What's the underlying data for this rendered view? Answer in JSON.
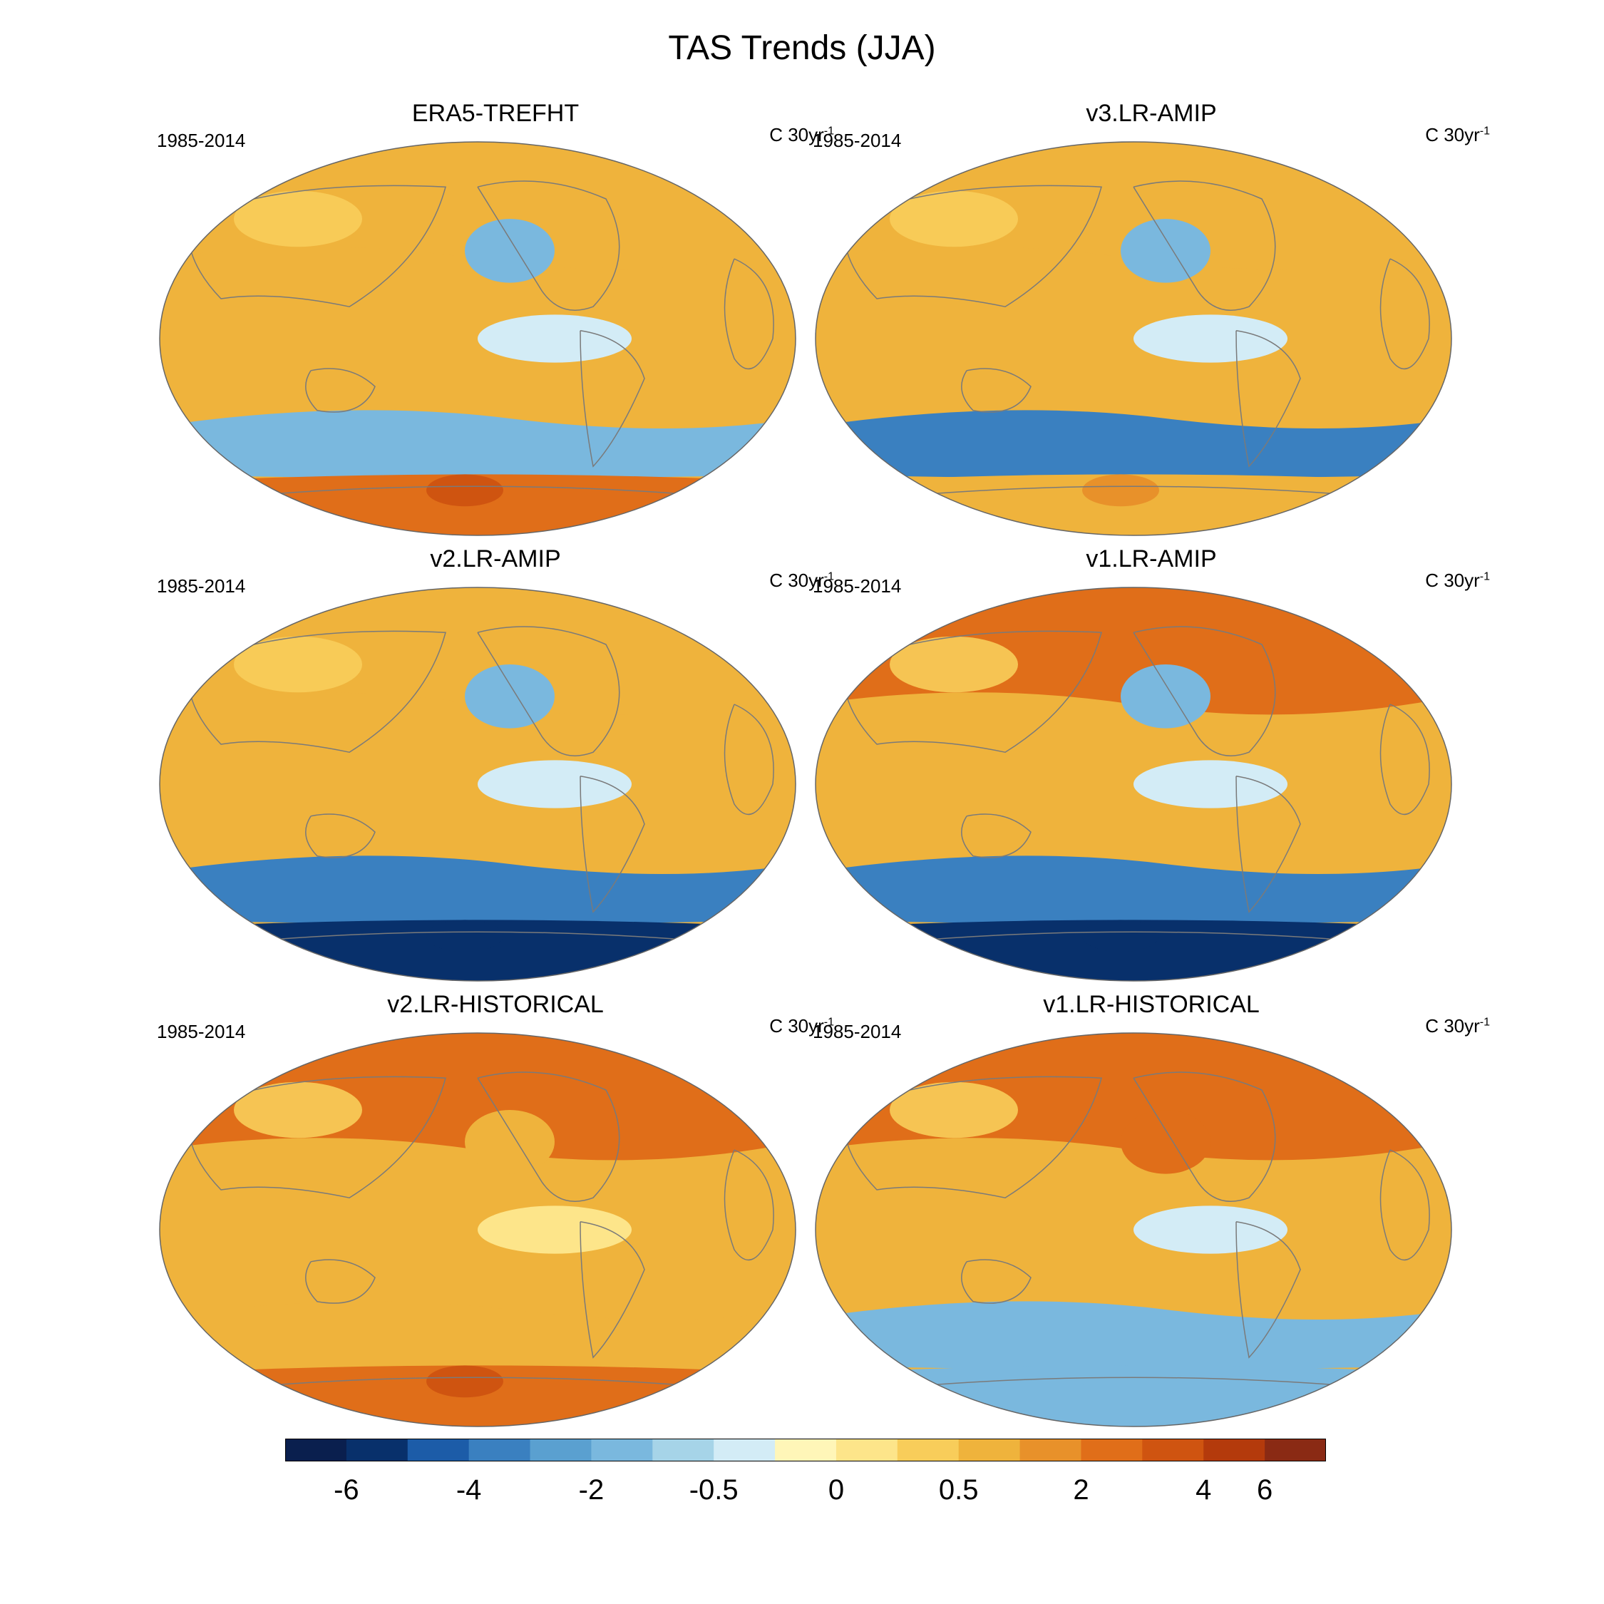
{
  "title": "TAS Trends (JJA)",
  "panels": [
    {
      "title": "ERA5-TREFHT",
      "period": "1985-2014",
      "units_main": "C 30yr",
      "units_sup": "-1",
      "regions": [
        {
          "name": "nh-high-lat",
          "value": 2
        },
        {
          "name": "mid-north-pacific",
          "value": -2
        },
        {
          "name": "tropical-east-pacific",
          "value": -0.5
        },
        {
          "name": "southern-ocean",
          "value": -2
        },
        {
          "name": "antarctic",
          "value": 4
        }
      ]
    },
    {
      "title": "v3.LR-AMIP",
      "period": "1985-2014",
      "units_main": "C 30yr",
      "units_sup": "-1",
      "regions": [
        {
          "name": "nh-high-lat",
          "value": 2
        },
        {
          "name": "mid-north-pacific",
          "value": -2
        },
        {
          "name": "tropical-east-pacific",
          "value": -0.5
        },
        {
          "name": "southern-ocean",
          "value": -4
        },
        {
          "name": "antarctic",
          "value": 2
        }
      ]
    },
    {
      "title": "v2.LR-AMIP",
      "period": "1985-2014",
      "units_main": "C 30yr",
      "units_sup": "-1",
      "regions": [
        {
          "name": "nh-high-lat",
          "value": 2
        },
        {
          "name": "mid-north-pacific",
          "value": -2
        },
        {
          "name": "tropical-east-pacific",
          "value": -0.5
        },
        {
          "name": "southern-ocean",
          "value": -4
        },
        {
          "name": "antarctic",
          "value": -6
        }
      ]
    },
    {
      "title": "v1.LR-AMIP",
      "period": "1985-2014",
      "units_main": "C 30yr",
      "units_sup": "-1",
      "regions": [
        {
          "name": "nh-high-lat",
          "value": 4
        },
        {
          "name": "mid-north-pacific",
          "value": -2
        },
        {
          "name": "tropical-east-pacific",
          "value": -0.5
        },
        {
          "name": "southern-ocean",
          "value": -4
        },
        {
          "name": "antarctic",
          "value": -6
        }
      ]
    },
    {
      "title": "v2.LR-HISTORICAL",
      "period": "1985-2014",
      "units_main": "C 30yr",
      "units_sup": "-1",
      "regions": [
        {
          "name": "nh-high-lat",
          "value": 4
        },
        {
          "name": "mid-north-pacific",
          "value": 2
        },
        {
          "name": "tropical-east-pacific",
          "value": 0.5
        },
        {
          "name": "southern-ocean",
          "value": 2
        },
        {
          "name": "antarctic",
          "value": 4
        }
      ]
    },
    {
      "title": "v1.LR-HISTORICAL",
      "period": "1985-2014",
      "units_main": "C 30yr",
      "units_sup": "-1",
      "regions": [
        {
          "name": "nh-high-lat",
          "value": 4
        },
        {
          "name": "mid-north-pacific",
          "value": 4
        },
        {
          "name": "tropical-east-pacific",
          "value": -0.5
        },
        {
          "name": "southern-ocean",
          "value": -2
        },
        {
          "name": "antarctic",
          "value": -2
        }
      ]
    }
  ],
  "colorbar": {
    "labels": [
      "-6",
      "-4",
      "-2",
      "-0.5",
      "0",
      "0.5",
      "2",
      "4",
      "6"
    ],
    "colors": [
      "#0a1f4e",
      "#08306b",
      "#1c5ca8",
      "#3a80c0",
      "#5aa0d0",
      "#7ab8de",
      "#a6d4e8",
      "#d3ecf6",
      "#fff6b8",
      "#fde58a",
      "#f8cd5a",
      "#efb33c",
      "#e8912a",
      "#e06e19",
      "#cf5410",
      "#b43a0c",
      "#8a2a14"
    ]
  },
  "chart_data": {
    "type": "heatmap",
    "title": "TAS Trends (JJA)",
    "levels": [
      -6,
      -4,
      -2,
      -0.5,
      0,
      0.5,
      2,
      4,
      6
    ],
    "units": "C 30yr-1",
    "panels": [
      "ERA5-TREFHT",
      "v3.LR-AMIP",
      "v2.LR-AMIP",
      "v1.LR-AMIP",
      "v2.LR-HISTORICAL",
      "v1.LR-HISTORICAL"
    ]
  }
}
